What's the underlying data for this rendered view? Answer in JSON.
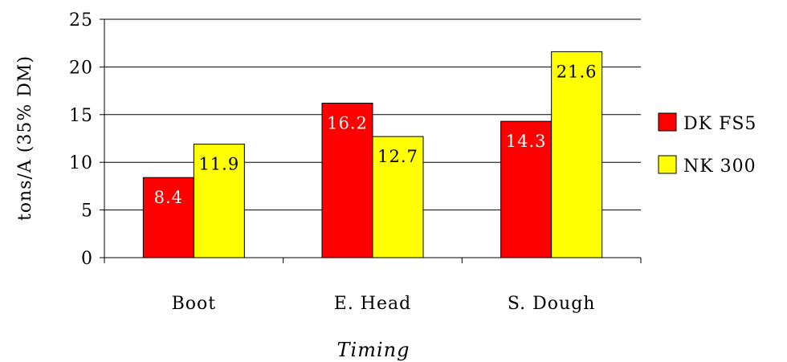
{
  "chart_data": {
    "type": "bar",
    "categories": [
      "Boot",
      "E. Head",
      "S. Dough"
    ],
    "series": [
      {
        "name": "DK FS5",
        "values": [
          8.4,
          16.2,
          14.3
        ],
        "color": "#ff0000",
        "label_color": "#ffffff"
      },
      {
        "name": "NK 300",
        "values": [
          11.9,
          12.7,
          21.6
        ],
        "color": "#ffff00",
        "label_color": "#000000"
      }
    ],
    "ylim": [
      0,
      25
    ],
    "yticks": [
      0,
      5,
      10,
      15,
      20,
      25
    ],
    "xlabel": "Timing",
    "ylabel": "tons/A (35% DM)",
    "grid": true,
    "legend": "right",
    "data_labels": [
      "8.4",
      "11.9",
      "16.2",
      "12.7",
      "14.3",
      "21.6"
    ]
  }
}
